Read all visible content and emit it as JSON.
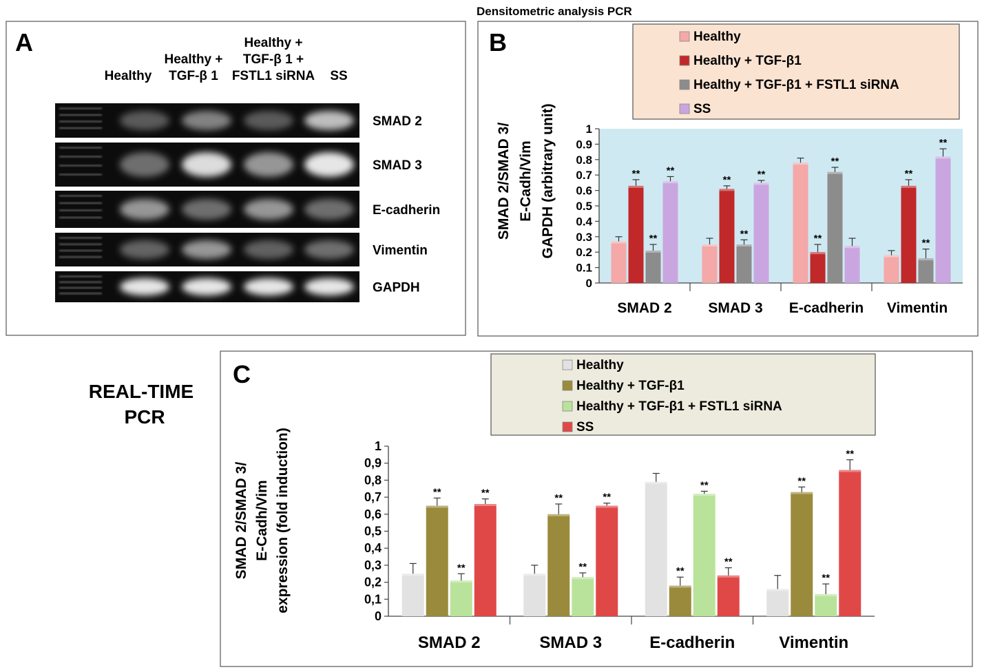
{
  "panel_a": {
    "label": "A",
    "lane_headers": [
      {
        "lines": [
          "Healthy"
        ]
      },
      {
        "lines": [
          "Healthy +",
          "TGF-β 1"
        ]
      },
      {
        "lines": [
          "Healthy +",
          "TGF-β 1 +",
          "FSTL1 siRNA"
        ]
      },
      {
        "lines": [
          "SS"
        ]
      }
    ],
    "genes": [
      "SMAD 2",
      "SMAD 3",
      "E-cadherin",
      "Vimentin",
      "GAPDH"
    ]
  },
  "chart_data": [
    {
      "type": "bar",
      "panel": "B",
      "title": "Densitometric analysis PCR",
      "categories": [
        "SMAD 2",
        "SMAD 3",
        "E-cadherin",
        "Vimentin"
      ],
      "ylabel": [
        "SMAD 2/SMAD 3/",
        "E-Cadh/Vim",
        "GAPDH (arbitrary unit)"
      ],
      "ylim": [
        0,
        1
      ],
      "yticks": [
        "0",
        "0.1",
        "0.2",
        "0.3",
        "0.4",
        "0.5",
        "0.6",
        "0.7",
        "0.8",
        "0.9",
        "1"
      ],
      "significance_label": "**",
      "legend_position": "top",
      "series": [
        {
          "name": "Healthy",
          "color": "#f4a8a8",
          "values": [
            0.27,
            0.25,
            0.78,
            0.18
          ],
          "errors": [
            0.03,
            0.04,
            0.03,
            0.03
          ],
          "significant": [
            false,
            false,
            false,
            false
          ]
        },
        {
          "name": "Healthy + TGF-β1",
          "color": "#c0282a",
          "values": [
            0.63,
            0.61,
            0.2,
            0.63
          ],
          "errors": [
            0.04,
            0.02,
            0.05,
            0.04
          ],
          "significant": [
            true,
            true,
            true,
            true
          ]
        },
        {
          "name": "Healthy + TGF-β1 + FSTL1 siRNA",
          "color": "#8c8c8c",
          "values": [
            0.21,
            0.25,
            0.72,
            0.16
          ],
          "errors": [
            0.04,
            0.03,
            0.03,
            0.06
          ],
          "significant": [
            true,
            true,
            true,
            true
          ]
        },
        {
          "name": "SS",
          "color": "#c9a6df",
          "values": [
            0.66,
            0.65,
            0.24,
            0.82
          ],
          "errors": [
            0.03,
            0.015,
            0.05,
            0.05
          ],
          "significant": [
            true,
            true,
            false,
            true
          ]
        }
      ]
    },
    {
      "type": "bar",
      "panel": "C",
      "title": "REAL-TIME PCR",
      "categories": [
        "SMAD 2",
        "SMAD 3",
        "E-cadherin",
        "Vimentin"
      ],
      "ylabel": [
        "SMAD 2/SMAD 3/",
        "E-Cadh/Vim",
        "expression (fold induction)"
      ],
      "ylim": [
        0,
        1
      ],
      "yticks": [
        "0",
        "0,1",
        "0,2",
        "0,3",
        "0,4",
        "0,5",
        "0,6",
        "0,7",
        "0,8",
        "0,9",
        "1"
      ],
      "significance_label": "**",
      "legend_position": "top",
      "series": [
        {
          "name": "Healthy",
          "color": "#e2e2e2",
          "values": [
            0.25,
            0.25,
            0.79,
            0.16
          ],
          "errors": [
            0.06,
            0.05,
            0.05,
            0.08
          ],
          "significant": [
            false,
            false,
            false,
            false
          ]
        },
        {
          "name": "Healthy + TGF-β1",
          "color": "#9a8a3c",
          "values": [
            0.65,
            0.6,
            0.18,
            0.73
          ],
          "errors": [
            0.045,
            0.06,
            0.05,
            0.03
          ],
          "significant": [
            true,
            true,
            true,
            true
          ]
        },
        {
          "name": "Healthy + TGF-β1 + FSTL1 siRNA",
          "color": "#b9e39a",
          "values": [
            0.21,
            0.23,
            0.72,
            0.13
          ],
          "errors": [
            0.04,
            0.025,
            0.015,
            0.06
          ],
          "significant": [
            true,
            true,
            true,
            true
          ]
        },
        {
          "name": "SS",
          "color": "#e04848",
          "values": [
            0.66,
            0.65,
            0.24,
            0.86
          ],
          "errors": [
            0.03,
            0.015,
            0.045,
            0.06
          ],
          "significant": [
            true,
            true,
            true,
            true
          ]
        }
      ]
    }
  ]
}
